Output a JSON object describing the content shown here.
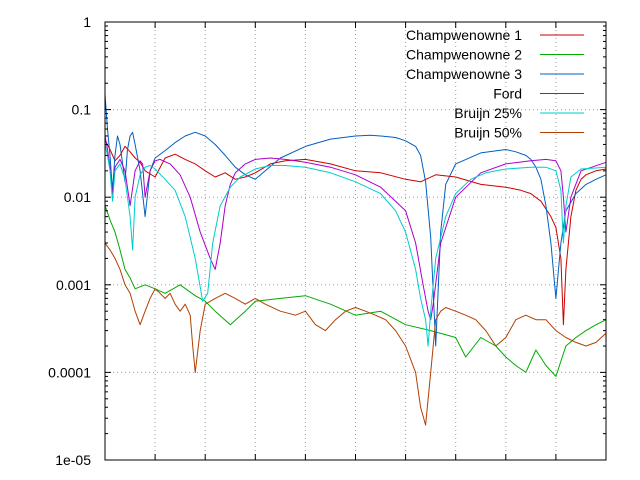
{
  "chart_data": {
    "type": "line",
    "title": "",
    "xlabel": "",
    "ylabel": "",
    "yscale": "log",
    "xlim": [
      0,
      100
    ],
    "ylim": [
      1e-05,
      1
    ],
    "grid": true,
    "legend_position": "top-right",
    "x_tick_count": 10,
    "y_ticks": [
      {
        "value": 1,
        "label": "1"
      },
      {
        "value": 0.1,
        "label": "0.1"
      },
      {
        "value": 0.01,
        "label": "0.01"
      },
      {
        "value": 0.001,
        "label": "0.001"
      },
      {
        "value": 0.0001,
        "label": "0.0001"
      },
      {
        "value": 1e-05,
        "label": "1e-05"
      }
    ],
    "series": [
      {
        "name": "Champwenowne 1",
        "color": "#cc0000",
        "x": [
          0,
          1,
          2,
          3,
          4,
          5,
          6,
          7,
          8,
          10,
          12,
          14,
          16,
          18,
          20,
          22,
          24,
          26,
          28,
          30,
          33,
          36,
          40,
          45,
          50,
          55,
          60,
          63,
          66,
          70,
          75,
          80,
          83,
          85,
          87,
          89,
          90,
          91,
          91.5,
          92,
          93,
          94,
          95,
          96,
          98,
          100
        ],
        "y": [
          0.045,
          0.035,
          0.026,
          0.03,
          0.038,
          0.033,
          0.028,
          0.025,
          0.02,
          0.017,
          0.028,
          0.031,
          0.027,
          0.024,
          0.02,
          0.017,
          0.019,
          0.016,
          0.017,
          0.019,
          0.024,
          0.026,
          0.027,
          0.024,
          0.02,
          0.019,
          0.016,
          0.015,
          0.018,
          0.017,
          0.014,
          0.013,
          0.012,
          0.011,
          0.009,
          0.006,
          0.0045,
          0.002,
          0.00035,
          0.0015,
          0.006,
          0.012,
          0.016,
          0.018,
          0.02,
          0.021
        ]
      },
      {
        "name": "Champwenowne 2",
        "color": "#00aa00",
        "x": [
          0,
          1,
          2,
          3,
          4,
          5,
          6,
          8,
          10,
          12,
          15,
          18,
          20,
          22,
          25,
          28,
          30,
          35,
          40,
          45,
          50,
          55,
          60,
          65,
          70,
          72,
          75,
          78,
          80,
          82,
          84,
          86,
          88,
          90,
          92,
          94,
          96,
          98,
          100
        ],
        "y": [
          0.008,
          0.0055,
          0.004,
          0.0025,
          0.0015,
          0.0012,
          0.0009,
          0.001,
          0.0009,
          0.0008,
          0.001,
          0.00075,
          0.00065,
          0.0005,
          0.00035,
          0.0005,
          0.00065,
          0.0007,
          0.00075,
          0.0006,
          0.00045,
          0.0005,
          0.00035,
          0.0003,
          0.00025,
          0.00015,
          0.00025,
          0.0002,
          0.00015,
          0.00012,
          0.0001,
          0.00018,
          0.00012,
          9e-05,
          0.0002,
          0.00025,
          0.0003,
          0.00035,
          0.0004
        ]
      },
      {
        "name": "Champwenowne 3",
        "color": "#0060c0",
        "x": [
          0,
          0.5,
          1,
          1.5,
          2,
          2.5,
          3,
          4,
          4.5,
          5,
          5.5,
          6,
          7,
          8,
          9,
          10,
          12,
          14,
          16,
          18,
          20,
          22,
          24,
          26,
          28,
          30,
          32,
          35,
          40,
          45,
          50,
          53,
          55,
          58,
          60,
          62,
          63,
          64,
          65,
          66,
          67,
          68,
          70,
          75,
          80,
          82,
          84,
          85,
          86,
          87,
          88,
          89,
          90,
          91,
          92,
          94,
          96,
          98,
          100
        ],
        "y": [
          0.15,
          0.06,
          0.03,
          0.012,
          0.03,
          0.05,
          0.04,
          0.015,
          0.035,
          0.05,
          0.055,
          0.04,
          0.02,
          0.006,
          0.02,
          0.028,
          0.034,
          0.042,
          0.05,
          0.055,
          0.05,
          0.04,
          0.03,
          0.022,
          0.018,
          0.016,
          0.02,
          0.028,
          0.038,
          0.046,
          0.05,
          0.051,
          0.05,
          0.048,
          0.044,
          0.038,
          0.03,
          0.015,
          0.0035,
          0.0002,
          0.004,
          0.014,
          0.024,
          0.032,
          0.035,
          0.033,
          0.03,
          0.027,
          0.022,
          0.016,
          0.008,
          0.003,
          0.0007,
          0.003,
          0.007,
          0.011,
          0.014,
          0.016,
          0.018
        ]
      },
      {
        "name": "Ford",
        "color": "#aa00cc",
        "x": [
          0,
          0.5,
          1,
          1.5,
          2,
          3,
          4,
          5,
          6,
          7,
          7.5,
          8,
          9,
          10,
          11,
          13,
          15,
          17,
          19,
          21,
          22,
          23,
          24,
          25,
          26,
          28,
          30,
          33,
          36,
          40,
          45,
          50,
          55,
          60,
          62,
          63.5,
          64.5,
          65,
          65.5,
          67,
          70,
          75,
          80,
          85,
          88,
          90,
          91,
          91.5,
          92,
          93,
          95,
          100
        ],
        "y": [
          0.05,
          0.035,
          0.022,
          0.01,
          0.022,
          0.027,
          0.02,
          0.008,
          0.02,
          0.026,
          0.024,
          0.01,
          0.02,
          0.026,
          0.027,
          0.024,
          0.018,
          0.01,
          0.004,
          0.002,
          0.0015,
          0.003,
          0.008,
          0.014,
          0.019,
          0.024,
          0.027,
          0.028,
          0.027,
          0.025,
          0.022,
          0.018,
          0.013,
          0.007,
          0.003,
          0.001,
          0.0005,
          0.0004,
          0.0006,
          0.003,
          0.01,
          0.019,
          0.024,
          0.026,
          0.027,
          0.026,
          0.02,
          0.01,
          0.004,
          0.01,
          0.02,
          0.025
        ]
      },
      {
        "name": "Bruijn 25%",
        "color": "#00cccc",
        "x": [
          0,
          0.5,
          1,
          1.5,
          2,
          3,
          4,
          5,
          5.5,
          6,
          7,
          8,
          9,
          10,
          12,
          14,
          16,
          18,
          19.5,
          20.5,
          21.5,
          23,
          25,
          27,
          30,
          33,
          36,
          40,
          45,
          50,
          55,
          58,
          60,
          62,
          63,
          64,
          64.5,
          65,
          66,
          68,
          70,
          73,
          76,
          80,
          85,
          88,
          90,
          91,
          91.5,
          92,
          93,
          95,
          100
        ],
        "y": [
          0.04,
          0.03,
          0.02,
          0.009,
          0.02,
          0.024,
          0.016,
          0.006,
          0.0025,
          0.01,
          0.018,
          0.022,
          0.023,
          0.021,
          0.016,
          0.012,
          0.006,
          0.002,
          0.00065,
          0.0008,
          0.003,
          0.008,
          0.013,
          0.017,
          0.021,
          0.023,
          0.023,
          0.022,
          0.019,
          0.015,
          0.011,
          0.007,
          0.004,
          0.0015,
          0.0007,
          0.0004,
          0.0002,
          0.0005,
          0.002,
          0.006,
          0.011,
          0.016,
          0.019,
          0.021,
          0.022,
          0.022,
          0.02,
          0.012,
          0.003,
          0.008,
          0.017,
          0.021,
          0.022
        ]
      },
      {
        "name": "Bruijn 50%",
        "color": "#b04000",
        "x": [
          0,
          1,
          2,
          3,
          4,
          5,
          6,
          7,
          8,
          9,
          10,
          11,
          12,
          13,
          14,
          15,
          16,
          17,
          17.5,
          18,
          19,
          20,
          22,
          24,
          26,
          28,
          30,
          32,
          35,
          38,
          40,
          42,
          44,
          46,
          48,
          50,
          52,
          54,
          56,
          58,
          60,
          62,
          63,
          64,
          65,
          66,
          67,
          68,
          70,
          72,
          74,
          76,
          78,
          80,
          82,
          84,
          86,
          88,
          90,
          92,
          94,
          96,
          98,
          100
        ],
        "y": [
          0.003,
          0.0025,
          0.002,
          0.0015,
          0.001,
          0.0008,
          0.0005,
          0.00035,
          0.0005,
          0.0007,
          0.0009,
          0.0008,
          0.0007,
          0.0008,
          0.0006,
          0.0005,
          0.0006,
          0.00045,
          0.0002,
          0.0001,
          0.0003,
          0.0006,
          0.0007,
          0.0008,
          0.0007,
          0.0006,
          0.0007,
          0.0006,
          0.0005,
          0.00045,
          0.0005,
          0.00035,
          0.0003,
          0.0004,
          0.0005,
          0.00055,
          0.0005,
          0.00045,
          0.0004,
          0.0003,
          0.0002,
          0.0001,
          4e-05,
          2.5e-05,
          0.0001,
          0.0004,
          0.0005,
          0.00055,
          0.0005,
          0.00045,
          0.0004,
          0.0003,
          0.0002,
          0.00025,
          0.0004,
          0.00045,
          0.0004,
          0.0004,
          0.0003,
          0.00025,
          0.00022,
          0.0002,
          0.00022,
          0.00028
        ]
      }
    ]
  }
}
